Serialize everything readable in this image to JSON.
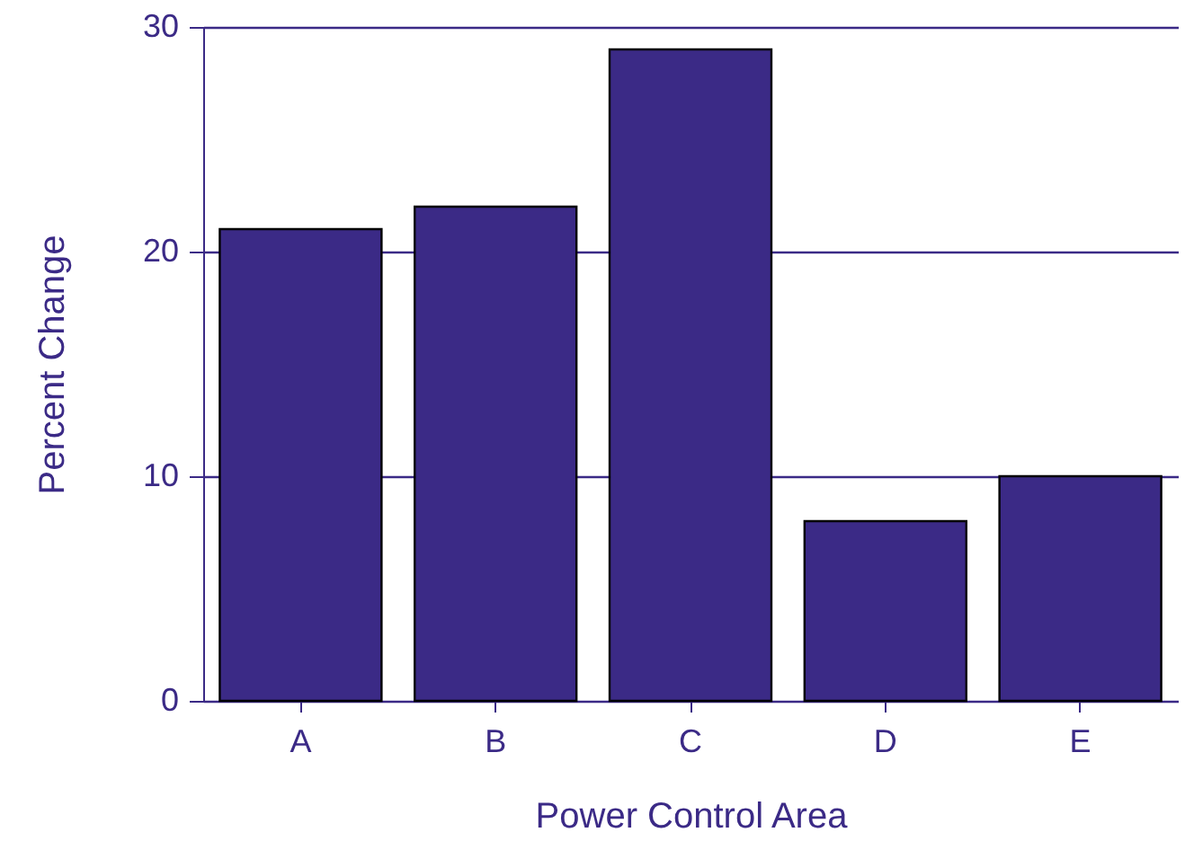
{
  "chart_data": {
    "type": "bar",
    "xlabel": "Power Control Area",
    "ylabel": "Percent Change",
    "categories": [
      "A",
      "B",
      "C",
      "D",
      "E"
    ],
    "values": [
      21,
      22,
      29,
      8,
      10
    ],
    "color": "#3b2a86",
    "ylim": [
      0,
      30
    ],
    "yticks": [
      0,
      10,
      20,
      30
    ],
    "grid": "y"
  }
}
